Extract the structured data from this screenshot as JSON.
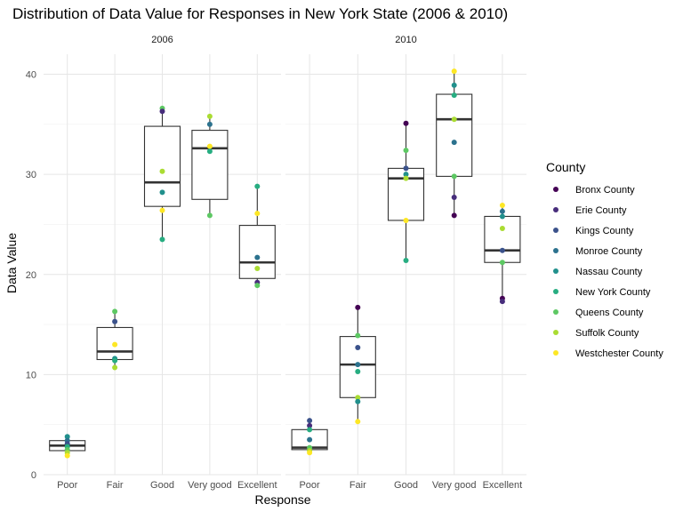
{
  "chart_data": {
    "type": "box",
    "title": "Distribution of Data Value for Responses in New York State (2006 & 2010)",
    "xlabel": "Response",
    "ylabel": "Data Value",
    "categories": [
      "Poor",
      "Fair",
      "Good",
      "Very good",
      "Excellent"
    ],
    "ylim": [
      0,
      42
    ],
    "yticks": [
      0,
      10,
      20,
      30,
      40
    ],
    "grid": true,
    "legend": {
      "title": "County",
      "position": "right",
      "entries": [
        {
          "name": "Bronx County",
          "color": "#440154"
        },
        {
          "name": "Erie County",
          "color": "#472D7B"
        },
        {
          "name": "Kings County",
          "color": "#3B528B"
        },
        {
          "name": "Monroe County",
          "color": "#2C728E"
        },
        {
          "name": "Nassau County",
          "color": "#21908C"
        },
        {
          "name": "New York County",
          "color": "#27AD81"
        },
        {
          "name": "Queens County",
          "color": "#5DC863"
        },
        {
          "name": "Suffolk County",
          "color": "#AADC32"
        },
        {
          "name": "Westchester County",
          "color": "#FDE725"
        }
      ]
    },
    "panels": [
      {
        "label": "2006",
        "boxes": [
          {
            "category": "Poor",
            "q1": 2.4,
            "median": 2.9,
            "q3": 3.4,
            "min": 1.9,
            "max": 3.8
          },
          {
            "category": "Fair",
            "q1": 11.5,
            "median": 12.3,
            "q3": 14.7,
            "min": 10.7,
            "max": 16.3
          },
          {
            "category": "Good",
            "q1": 26.8,
            "median": 29.2,
            "q3": 34.8,
            "min": 23.5,
            "max": 36.6
          },
          {
            "category": "Very good",
            "q1": 27.5,
            "median": 32.6,
            "q3": 34.4,
            "min": 25.9,
            "max": 35.8
          },
          {
            "category": "Excellent",
            "q1": 19.6,
            "median": 21.2,
            "q3": 24.9,
            "min": 18.9,
            "max": 28.8
          }
        ],
        "points": [
          {
            "category": "Poor",
            "county": "Nassau County",
            "value": 3.8
          },
          {
            "category": "Poor",
            "county": "Monroe County",
            "value": 3.4
          },
          {
            "category": "Poor",
            "county": "Kings County",
            "value": 3.1
          },
          {
            "category": "Poor",
            "county": "New York County",
            "value": 2.8
          },
          {
            "category": "Poor",
            "county": "Queens County",
            "value": 2.5
          },
          {
            "category": "Poor",
            "county": "Suffolk County",
            "value": 2.2
          },
          {
            "category": "Poor",
            "county": "Westchester County",
            "value": 1.9
          },
          {
            "category": "Fair",
            "county": "Queens County",
            "value": 16.3
          },
          {
            "category": "Fair",
            "county": "Kings County",
            "value": 15.3
          },
          {
            "category": "Fair",
            "county": "Westchester County",
            "value": 13.0
          },
          {
            "category": "Fair",
            "county": "Nassau County",
            "value": 11.6
          },
          {
            "category": "Fair",
            "county": "New York County",
            "value": 11.4
          },
          {
            "category": "Fair",
            "county": "Suffolk County",
            "value": 10.7
          },
          {
            "category": "Good",
            "county": "Queens County",
            "value": 36.6
          },
          {
            "category": "Good",
            "county": "Erie County",
            "value": 36.3
          },
          {
            "category": "Good",
            "county": "Suffolk County",
            "value": 30.3
          },
          {
            "category": "Good",
            "county": "Nassau County",
            "value": 28.2
          },
          {
            "category": "Good",
            "county": "Westchester County",
            "value": 26.4
          },
          {
            "category": "Good",
            "county": "New York County",
            "value": 23.5
          },
          {
            "category": "Very good",
            "county": "Suffolk County",
            "value": 35.8
          },
          {
            "category": "Very good",
            "county": "Monroe County",
            "value": 35.0
          },
          {
            "category": "Very good",
            "county": "Westchester County",
            "value": 32.8
          },
          {
            "category": "Very good",
            "county": "New York County",
            "value": 32.3
          },
          {
            "category": "Very good",
            "county": "Queens County",
            "value": 25.9
          },
          {
            "category": "Excellent",
            "county": "New York County",
            "value": 28.8
          },
          {
            "category": "Excellent",
            "county": "Westchester County",
            "value": 26.1
          },
          {
            "category": "Excellent",
            "county": "Monroe County",
            "value": 21.7
          },
          {
            "category": "Excellent",
            "county": "Suffolk County",
            "value": 20.6
          },
          {
            "category": "Excellent",
            "county": "Erie County",
            "value": 19.2
          },
          {
            "category": "Excellent",
            "county": "Queens County",
            "value": 18.9
          }
        ]
      },
      {
        "label": "2010",
        "boxes": [
          {
            "category": "Poor",
            "q1": 2.5,
            "median": 2.7,
            "q3": 4.5,
            "min": 2.2,
            "max": 5.4
          },
          {
            "category": "Fair",
            "q1": 7.7,
            "median": 11.0,
            "q3": 13.8,
            "min": 5.3,
            "max": 16.7
          },
          {
            "category": "Good",
            "q1": 25.4,
            "median": 29.6,
            "q3": 30.6,
            "min": 21.4,
            "max": 35.1
          },
          {
            "category": "Very good",
            "q1": 29.8,
            "median": 35.5,
            "q3": 38.0,
            "min": 25.9,
            "max": 40.3
          },
          {
            "category": "Excellent",
            "q1": 21.2,
            "median": 22.4,
            "q3": 25.8,
            "min": 17.3,
            "max": 26.9
          }
        ],
        "points": [
          {
            "category": "Poor",
            "county": "Kings County",
            "value": 5.4
          },
          {
            "category": "Poor",
            "county": "Erie County",
            "value": 4.9
          },
          {
            "category": "Poor",
            "county": "New York County",
            "value": 4.5
          },
          {
            "category": "Poor",
            "county": "Monroe County",
            "value": 3.5
          },
          {
            "category": "Poor",
            "county": "Queens County",
            "value": 2.7
          },
          {
            "category": "Poor",
            "county": "Suffolk County",
            "value": 2.4
          },
          {
            "category": "Poor",
            "county": "Westchester County",
            "value": 2.2
          },
          {
            "category": "Fair",
            "county": "Bronx County",
            "value": 16.7
          },
          {
            "category": "Fair",
            "county": "Queens County",
            "value": 13.9
          },
          {
            "category": "Fair",
            "county": "Kings County",
            "value": 12.7
          },
          {
            "category": "Fair",
            "county": "Monroe County",
            "value": 11.0
          },
          {
            "category": "Fair",
            "county": "New York County",
            "value": 10.3
          },
          {
            "category": "Fair",
            "county": "Suffolk County",
            "value": 7.7
          },
          {
            "category": "Fair",
            "county": "Nassau County",
            "value": 7.3
          },
          {
            "category": "Fair",
            "county": "Westchester County",
            "value": 5.3
          },
          {
            "category": "Good",
            "county": "Bronx County",
            "value": 35.1
          },
          {
            "category": "Good",
            "county": "Queens County",
            "value": 32.4
          },
          {
            "category": "Good",
            "county": "Kings County",
            "value": 30.6
          },
          {
            "category": "Good",
            "county": "Nassau County",
            "value": 30.0
          },
          {
            "category": "Good",
            "county": "Suffolk County",
            "value": 29.6
          },
          {
            "category": "Good",
            "county": "Westchester County",
            "value": 25.4
          },
          {
            "category": "Good",
            "county": "New York County",
            "value": 21.4
          },
          {
            "category": "Very good",
            "county": "Westchester County",
            "value": 40.3
          },
          {
            "category": "Very good",
            "county": "Nassau County",
            "value": 38.9
          },
          {
            "category": "Very good",
            "county": "New York County",
            "value": 37.9
          },
          {
            "category": "Very good",
            "county": "Suffolk County",
            "value": 35.5
          },
          {
            "category": "Very good",
            "county": "Monroe County",
            "value": 33.2
          },
          {
            "category": "Very good",
            "county": "Queens County",
            "value": 29.8
          },
          {
            "category": "Very good",
            "county": "Erie County",
            "value": 27.7
          },
          {
            "category": "Very good",
            "county": "Bronx County",
            "value": 25.9
          },
          {
            "category": "Excellent",
            "county": "Westchester County",
            "value": 26.9
          },
          {
            "category": "Excellent",
            "county": "Monroe County",
            "value": 26.3
          },
          {
            "category": "Excellent",
            "county": "Nassau County",
            "value": 25.8
          },
          {
            "category": "Excellent",
            "county": "Suffolk County",
            "value": 24.6
          },
          {
            "category": "Excellent",
            "county": "Kings County",
            "value": 22.4
          },
          {
            "category": "Excellent",
            "county": "Queens County",
            "value": 21.2
          },
          {
            "category": "Excellent",
            "county": "Bronx County",
            "value": 17.6
          },
          {
            "category": "Excellent",
            "county": "Erie County",
            "value": 17.3
          }
        ]
      }
    ]
  }
}
